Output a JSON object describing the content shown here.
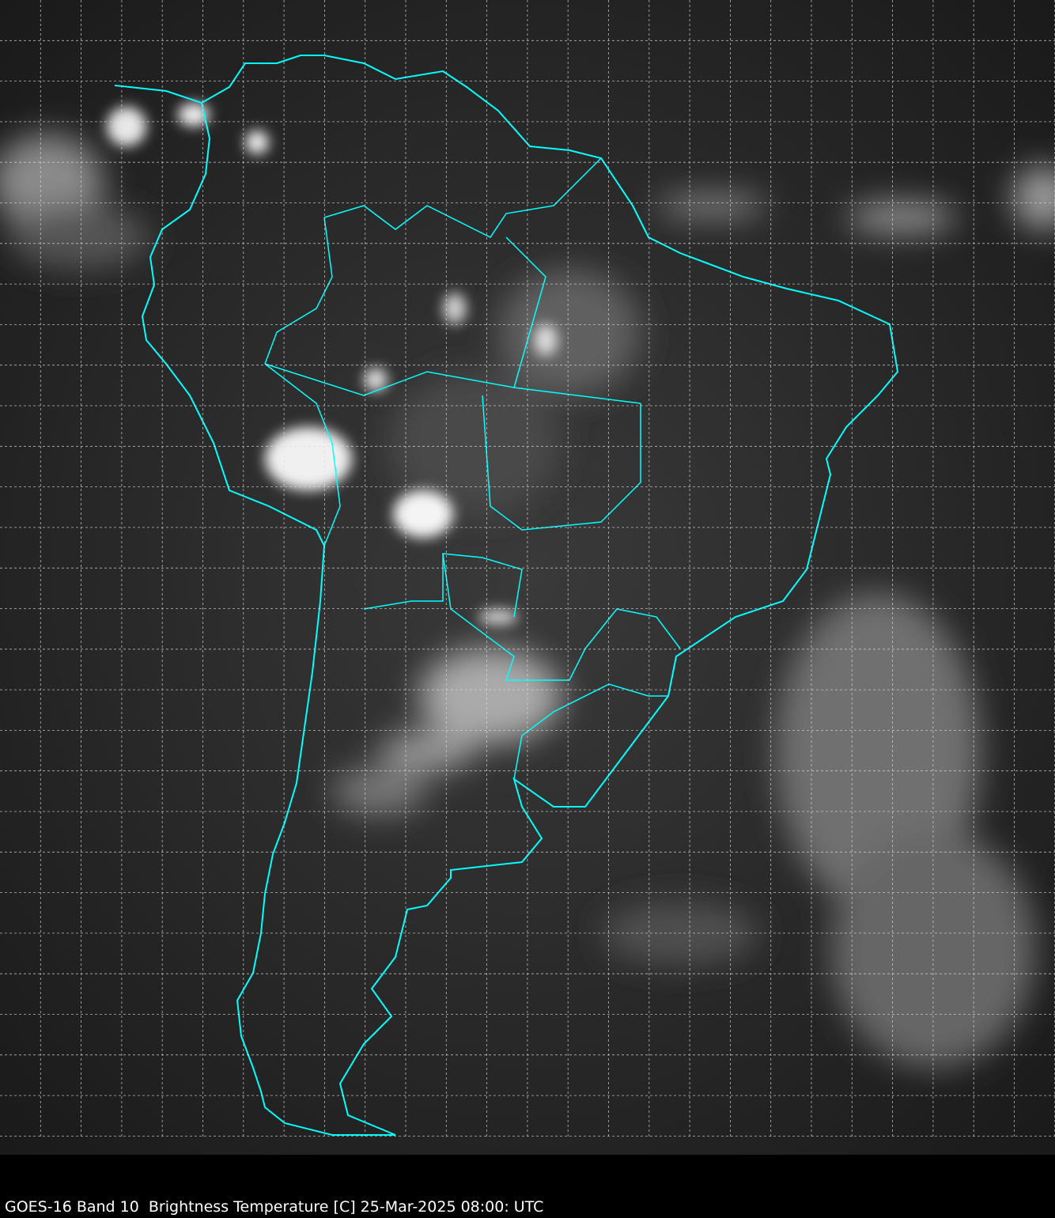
{
  "caption": "GOES-16 Band 10  Brightness Temperature [C] 25-Mar-2025 08:00: UTC",
  "colors": {
    "background": "#000000",
    "coastline": "#00ffff",
    "grid": "#dddddd",
    "caption_text": "#ffffff"
  }
}
